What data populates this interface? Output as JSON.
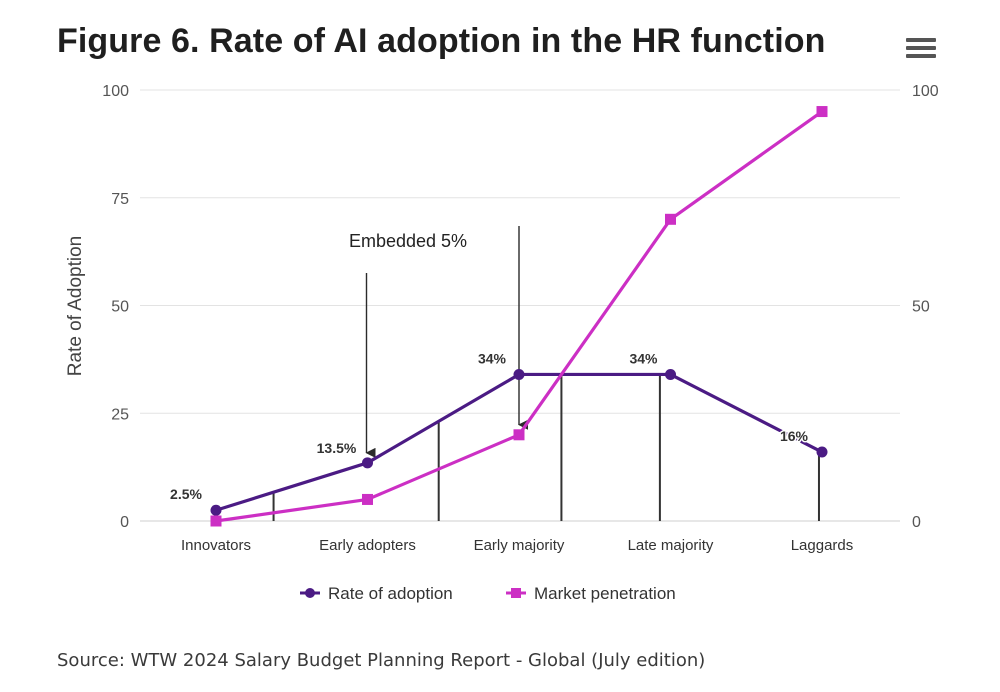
{
  "title": "Figure 6. Rate of AI adoption in the HR function",
  "source": "Source: WTW 2024 Salary Budget Planning Report - Global (July edition)",
  "menu_icon": "hamburger-menu-icon",
  "chart_data": {
    "type": "line",
    "title": "Figure 6. Rate of AI adoption in the HR function",
    "xlabel": "",
    "ylabel": "Rate of Adoption",
    "ylim": [
      0,
      100
    ],
    "y2lim": [
      0,
      100
    ],
    "yticks": [
      0,
      25,
      50,
      75,
      100
    ],
    "y2ticks": [
      0,
      50,
      100
    ],
    "grid": true,
    "categories": [
      "Innovators",
      "Early adopters",
      "Early majority",
      "Late majority",
      "Laggards"
    ],
    "series": [
      {
        "name": "Rate of adoption",
        "color": "#4b1b84",
        "marker": "circle",
        "values": [
          2.5,
          13.5,
          34,
          34,
          16
        ],
        "labels": [
          "2.5%",
          "13.5%",
          "34%",
          "34%",
          "16%"
        ]
      },
      {
        "name": "Market penetration",
        "color": "#cc2fc4",
        "marker": "square",
        "values": [
          0,
          5,
          20,
          70,
          95
        ],
        "labels": [
          "",
          "",
          "",
          "",
          ""
        ]
      }
    ],
    "annotations": [
      {
        "text": "Embedded 5%",
        "category_index": 1,
        "arrow_to_series": "Rate of adoption"
      },
      {
        "text": "",
        "category_index": 2,
        "arrow_to_series": "Market penetration"
      }
    ],
    "drop_lines": [
      0.38,
      1.47,
      2.28,
      2.93,
      3.98
    ],
    "legend": "bottom-center"
  }
}
